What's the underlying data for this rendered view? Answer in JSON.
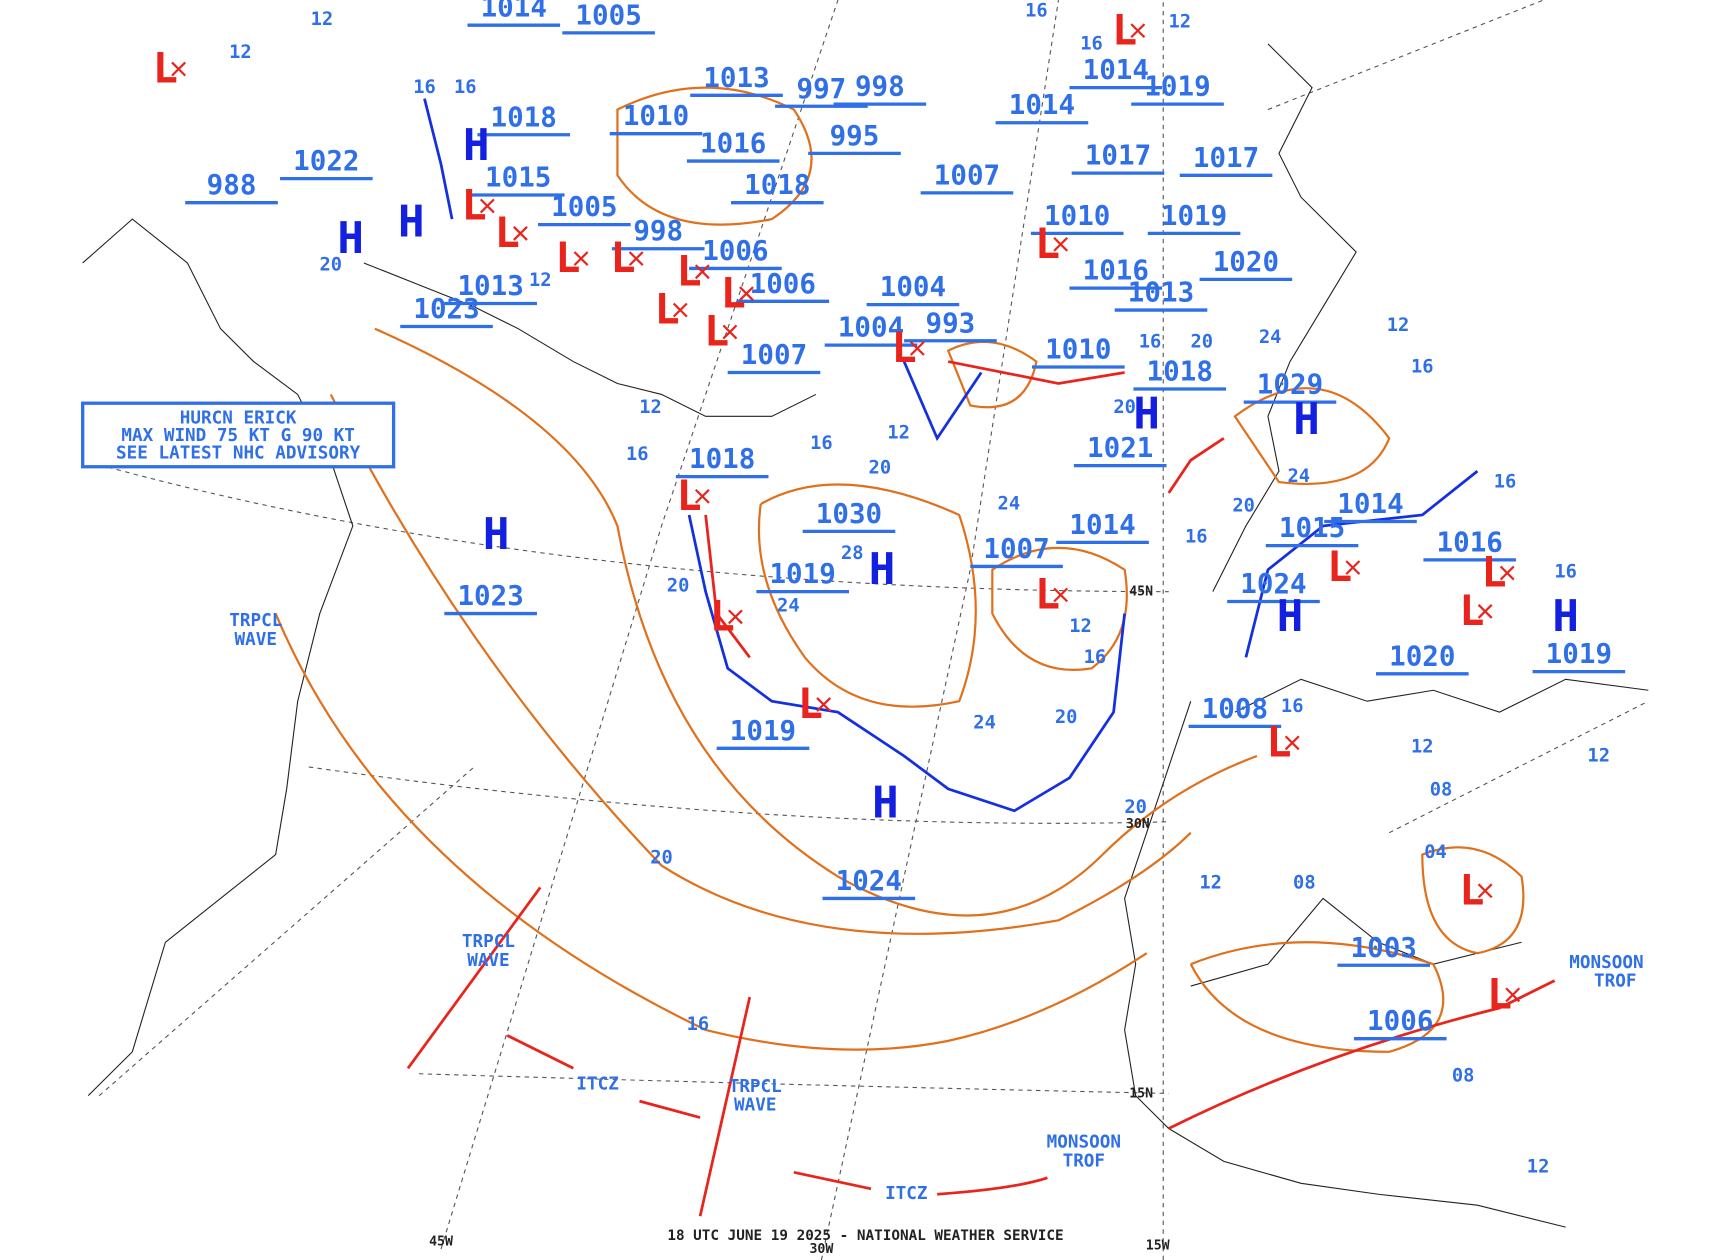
{
  "footer": "18 UTC JUNE 19 2025 - NATIONAL WEATHER SERVICE",
  "advisory": [
    "HURCN ERICK",
    "MAX WIND 75 KT G 90 KT",
    "SEE LATEST NHC ADVISORY"
  ],
  "pressure_labels": [
    "1023",
    "1024",
    "1019",
    "1019",
    "1030",
    "1018",
    "1007",
    "1014",
    "1021",
    "1018",
    "1029",
    "1024",
    "1015",
    "1014",
    "1016",
    "1020",
    "1019",
    "1008",
    "1003",
    "1006",
    "1023",
    "1013",
    "1022",
    "988",
    "1018",
    "1015",
    "1005",
    "998",
    "1006",
    "1006",
    "1007",
    "1010",
    "1016",
    "1018",
    "1013",
    "1005",
    "997",
    "998",
    "995",
    "1007",
    "1014",
    "1014",
    "1019",
    "1017",
    "1017",
    "1010",
    "1019",
    "1020",
    "1016",
    "1013",
    "1004",
    "1004",
    "993",
    "1010",
    "1014"
  ],
  "isobar_labels": [
    "20",
    "16",
    "20",
    "24",
    "28",
    "24",
    "20",
    "16",
    "12",
    "20",
    "12",
    "08",
    "08",
    "04",
    "12",
    "12",
    "08",
    "12",
    "16",
    "16",
    "20",
    "24",
    "24",
    "16",
    "12",
    "16",
    "16",
    "12",
    "16",
    "16",
    "20",
    "12",
    "24",
    "20",
    "12",
    "12",
    "16",
    "16",
    "12",
    "12",
    "16",
    "16",
    "20",
    "16",
    "20"
  ],
  "high_symbols": [
    "H",
    "H",
    "H",
    "H",
    "H",
    "H",
    "H",
    "H",
    "H",
    "H"
  ],
  "low_symbols": [
    "L",
    "L",
    "L",
    "L",
    "L",
    "L",
    "L",
    "L",
    "L",
    "L",
    "L",
    "L",
    "L",
    "L",
    "L",
    "L",
    "L",
    "L",
    "L",
    "L",
    "L",
    "L"
  ],
  "features": [
    "TRPCL",
    "WAVE",
    "TRPCL",
    "WAVE",
    "TRPCL",
    "WAVE",
    "ITCZ",
    "ITCZ",
    "MONSOON",
    "TROF",
    "MONSOON",
    "TROF"
  ],
  "grid_labels": [
    "45W",
    "30W",
    "15W",
    "45N",
    "30N",
    "15N"
  ]
}
